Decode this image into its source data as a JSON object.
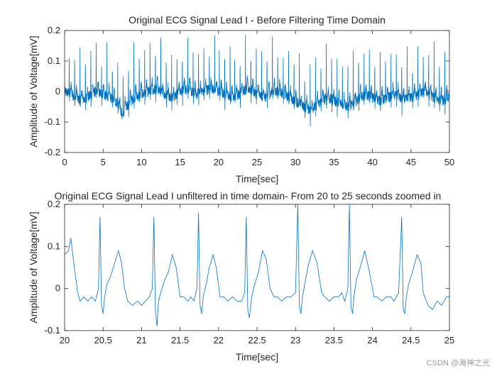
{
  "chart_data": [
    {
      "type": "line",
      "title": "Original ECG Signal Lead I - Before Filtering Time Domain",
      "xlabel": "Time[sec]",
      "ylabel": "Amplitude of Voltage[mV]",
      "xlim": [
        0,
        50
      ],
      "ylim": [
        -0.2,
        0.2
      ],
      "xticks": [
        "0",
        "5",
        "10",
        "15",
        "20",
        "25",
        "30",
        "35",
        "40",
        "45",
        "50"
      ],
      "xtick_values": [
        0,
        5,
        10,
        15,
        20,
        25,
        30,
        35,
        40,
        45,
        50
      ],
      "yticks": [
        "-0.2",
        "-0.1",
        "0",
        "0.1",
        "0.2"
      ],
      "ytick_values": [
        -0.2,
        -0.1,
        0,
        0.1,
        0.2
      ],
      "series_color": "#0072BD",
      "grid": false,
      "series": [
        {
          "x": [
            0,
            1,
            2,
            3,
            4,
            5,
            6,
            7,
            7.5,
            8,
            9,
            10,
            11,
            12,
            13,
            14,
            15,
            16,
            17,
            18,
            19,
            20,
            21,
            22,
            23,
            24,
            25,
            26,
            27,
            28,
            29,
            30,
            31,
            32,
            33,
            34,
            35,
            36,
            37,
            38,
            39,
            40,
            41,
            42,
            43,
            44,
            45,
            46,
            47,
            48,
            49,
            50
          ],
          "baseline": [
            0.0,
            -0.01,
            -0.03,
            -0.02,
            0.0,
            -0.01,
            -0.02,
            -0.04,
            -0.08,
            -0.05,
            -0.02,
            -0.01,
            0.0,
            0.01,
            -0.01,
            -0.02,
            0.0,
            0.01,
            -0.01,
            0.0,
            0.01,
            0.0,
            -0.01,
            -0.02,
            0.0,
            0.01,
            -0.01,
            -0.02,
            0.0,
            0.0,
            -0.02,
            -0.03,
            -0.05,
            -0.06,
            -0.04,
            -0.02,
            -0.03,
            -0.04,
            -0.05,
            -0.03,
            -0.01,
            -0.02,
            -0.03,
            -0.02,
            -0.01,
            -0.03,
            -0.02,
            -0.01,
            0.0,
            -0.02,
            -0.03,
            -0.02
          ],
          "r_peaks": [
            0.6,
            1.3,
            2.0,
            2.7,
            3.4,
            4.1,
            4.8,
            5.5,
            6.2,
            6.9,
            7.6,
            8.3,
            9.0,
            9.7,
            10.4,
            11.1,
            11.8,
            12.5,
            13.2,
            13.9,
            14.6,
            15.3,
            16.0,
            16.7,
            17.4,
            18.1,
            18.8,
            19.5,
            20.1,
            20.8,
            21.5,
            22.1,
            22.8,
            23.5,
            24.2,
            24.9,
            25.6,
            26.3,
            27.0,
            27.7,
            28.4,
            29.1,
            29.8,
            30.5,
            31.2,
            31.9,
            32.6,
            33.3,
            34.0,
            34.7,
            35.4,
            36.1,
            36.8,
            37.5,
            38.2,
            38.9,
            39.6,
            40.3,
            41.0,
            41.7,
            42.4,
            43.1,
            43.8,
            44.5,
            45.2,
            45.9,
            46.6,
            47.3,
            48.0,
            48.7,
            49.4
          ]
        }
      ]
    },
    {
      "type": "line",
      "title": "Original ECG Signal Lead I unfiltered in time domain- From 20 to 25 seconds zoomed in",
      "xlabel": "Time[sec]",
      "ylabel": "Amplitude of Voltage[mV]",
      "xlim": [
        20,
        25
      ],
      "ylim": [
        -0.1,
        0.2
      ],
      "xticks": [
        "20",
        "20.5",
        "21",
        "21.5",
        "22",
        "22.5",
        "23",
        "23.5",
        "24",
        "24.5",
        "25"
      ],
      "xtick_values": [
        20,
        20.5,
        21,
        21.5,
        22,
        22.5,
        23,
        23.5,
        24,
        24.5,
        25
      ],
      "yticks": [
        "-0.1",
        "0",
        "0.1",
        "0.2"
      ],
      "ytick_values": [
        -0.1,
        0,
        0.1,
        0.2
      ],
      "series_color": "#0072BD",
      "grid": false,
      "series": [
        {
          "x": [
            20.0,
            20.05,
            20.08,
            20.12,
            20.17,
            20.2,
            20.25,
            20.3,
            20.35,
            20.4,
            20.44,
            20.46,
            20.48,
            20.5,
            20.52,
            20.55,
            20.6,
            20.65,
            20.7,
            20.74,
            20.78,
            20.82,
            20.88,
            20.95,
            21.0,
            21.05,
            21.1,
            21.14,
            21.16,
            21.18,
            21.2,
            21.22,
            21.25,
            21.3,
            21.35,
            21.4,
            21.45,
            21.5,
            21.55,
            21.6,
            21.64,
            21.68,
            21.72,
            21.74,
            21.76,
            21.78,
            21.8,
            21.84,
            21.88,
            21.93,
            21.97,
            22.02,
            22.07,
            22.12,
            22.18,
            22.24,
            22.3,
            22.34,
            22.36,
            22.38,
            22.4,
            22.43,
            22.47,
            22.52,
            22.57,
            22.62,
            22.67,
            22.72,
            22.77,
            22.82,
            22.88,
            22.94,
            23.0,
            23.03,
            23.05,
            23.07,
            23.09,
            23.12,
            23.16,
            23.22,
            23.28,
            23.34,
            23.38,
            23.44,
            23.5,
            23.56,
            23.6,
            23.64,
            23.68,
            23.7,
            23.72,
            23.74,
            23.76,
            23.79,
            23.84,
            23.9,
            23.96,
            24.02,
            24.06,
            24.12,
            24.18,
            24.24,
            24.28,
            24.34,
            24.38,
            24.4,
            24.42,
            24.44,
            24.47,
            24.52,
            24.58,
            24.63,
            24.66,
            24.72,
            24.78,
            24.84,
            24.9,
            24.96,
            25.0
          ],
          "y": [
            0.08,
            0.09,
            0.12,
            0.06,
            -0.01,
            -0.03,
            -0.02,
            -0.03,
            -0.02,
            -0.03,
            0.0,
            0.17,
            -0.04,
            -0.06,
            -0.02,
            0.01,
            0.03,
            0.06,
            0.09,
            0.06,
            0.0,
            -0.03,
            -0.04,
            -0.03,
            -0.04,
            -0.03,
            -0.02,
            0.0,
            0.17,
            -0.05,
            -0.09,
            -0.03,
            -0.01,
            0.02,
            0.04,
            0.08,
            0.05,
            -0.02,
            -0.02,
            -0.03,
            -0.02,
            -0.03,
            0.0,
            0.18,
            -0.04,
            -0.06,
            -0.02,
            0.01,
            0.05,
            0.08,
            0.05,
            -0.02,
            -0.02,
            -0.03,
            -0.02,
            -0.03,
            -0.03,
            -0.01,
            0.17,
            -0.05,
            -0.07,
            -0.02,
            0.01,
            0.04,
            0.09,
            0.07,
            0.0,
            -0.02,
            -0.02,
            -0.03,
            -0.02,
            -0.02,
            -0.01,
            0.2,
            -0.04,
            -0.06,
            -0.02,
            0.01,
            0.05,
            0.09,
            0.06,
            -0.01,
            -0.02,
            -0.03,
            -0.02,
            -0.02,
            -0.01,
            -0.03,
            0.0,
            0.2,
            -0.04,
            -0.06,
            -0.02,
            0.02,
            0.05,
            0.09,
            0.04,
            -0.02,
            -0.02,
            -0.03,
            -0.02,
            -0.02,
            -0.03,
            -0.01,
            0.17,
            -0.05,
            -0.06,
            -0.02,
            0.01,
            0.04,
            0.08,
            0.06,
            -0.01,
            -0.04,
            -0.05,
            -0.03,
            -0.04,
            -0.02,
            -0.02
          ]
        }
      ]
    }
  ],
  "watermark": "CSDN @海神之光"
}
